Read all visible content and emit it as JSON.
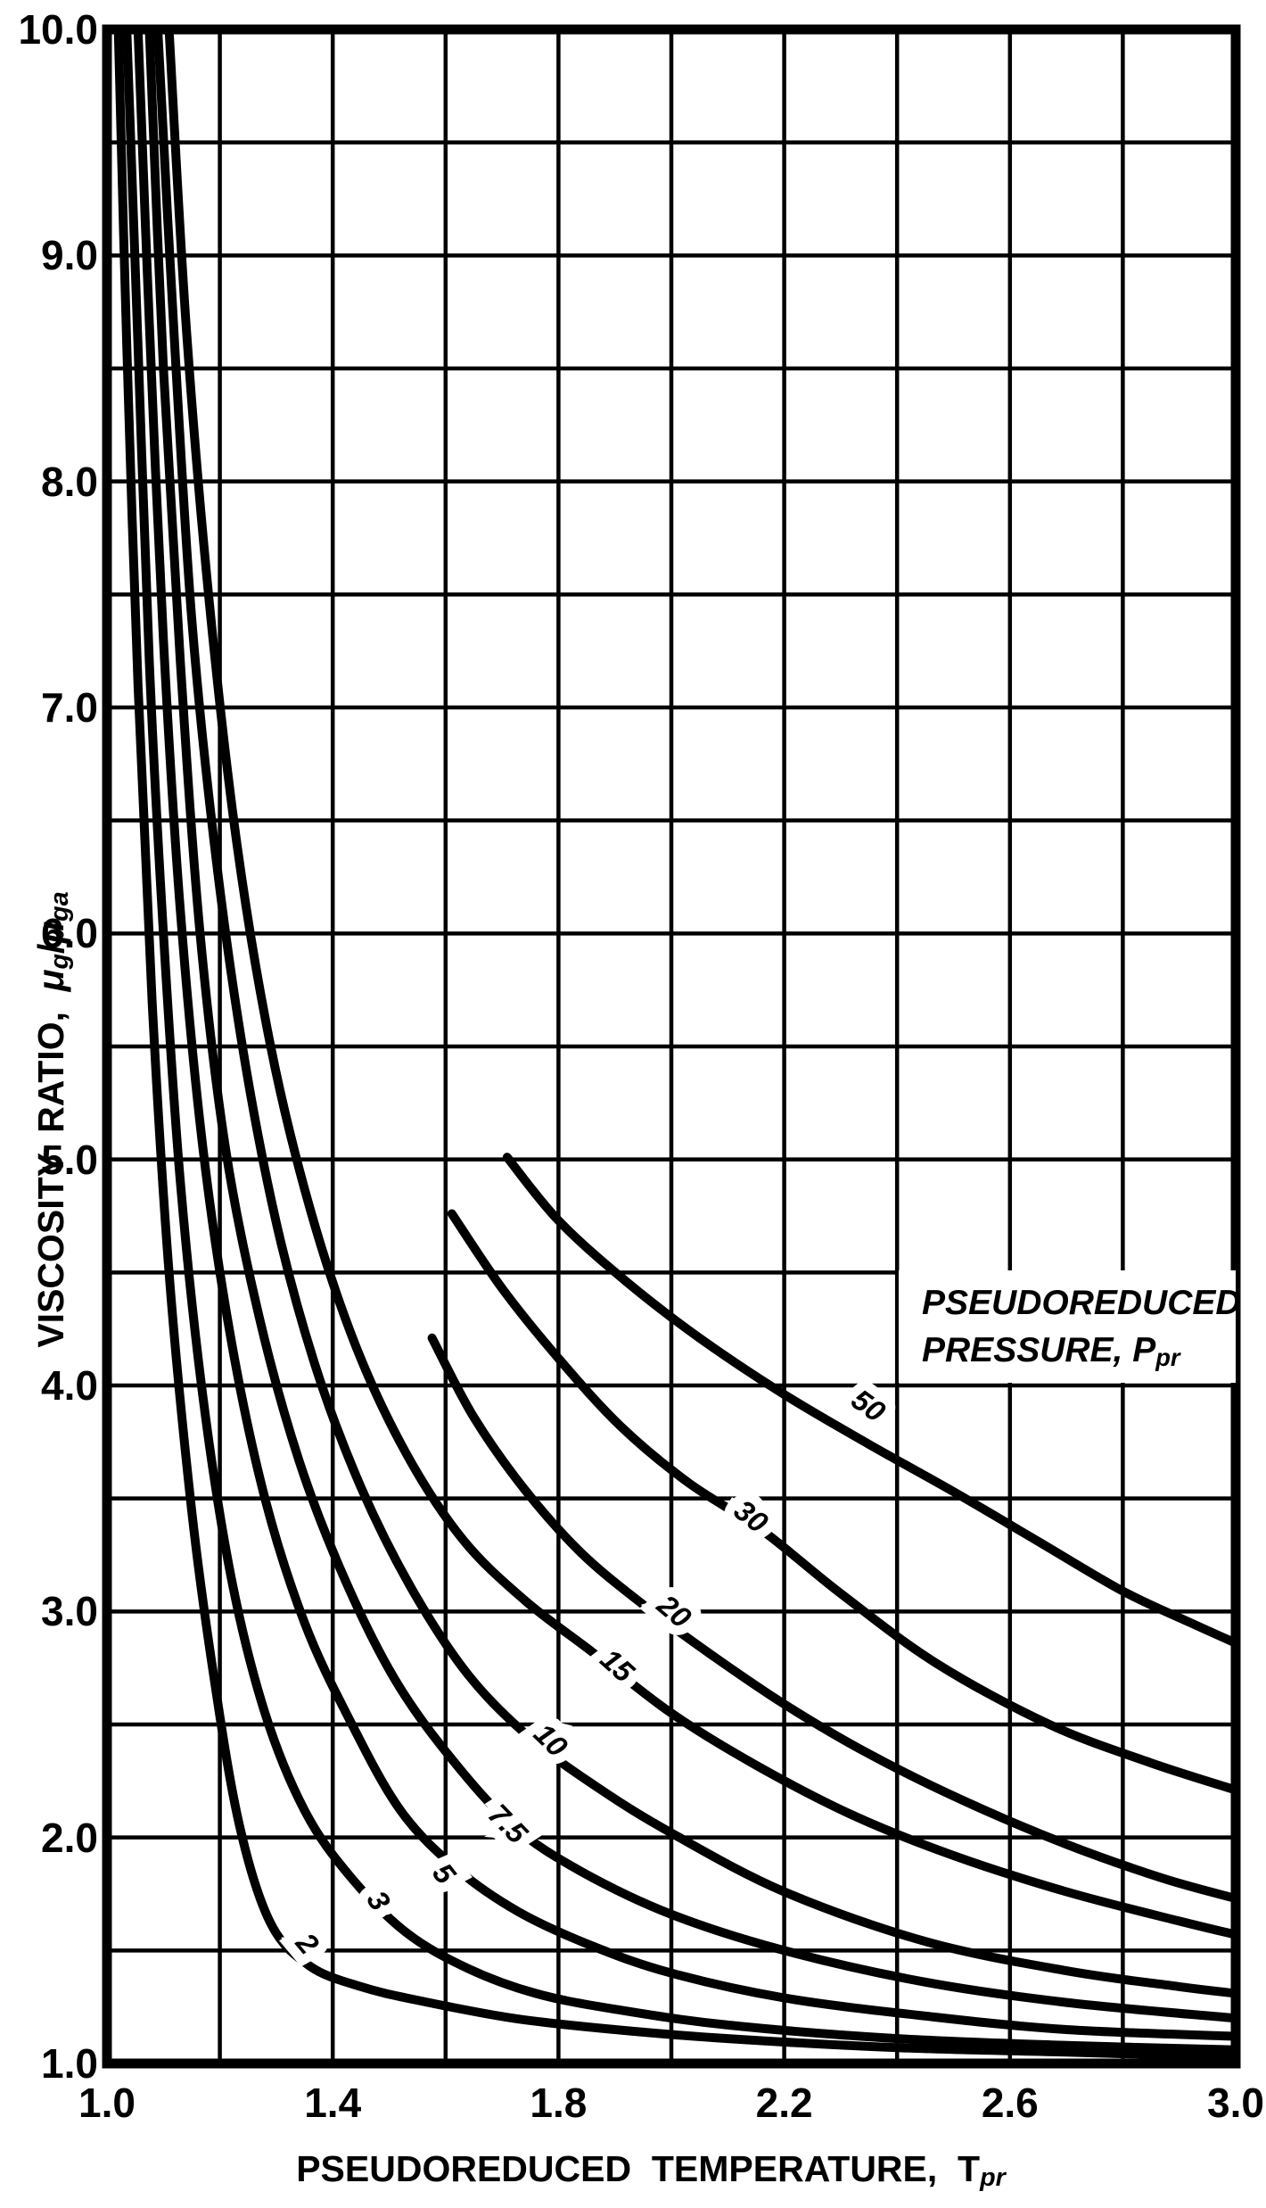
{
  "chart_data": {
    "type": "line",
    "title": "",
    "xlabel_main": "PSEUDOREDUCED  TEMPERATURE,  T",
    "xlabel_sub": "pr",
    "ylabel_prefix": "VISCOSITY  RATIO,  ",
    "ylabel_mu1": "μ",
    "ylabel_sub1": "g",
    "ylabel_slash": "/",
    "ylabel_mu2": "μ",
    "ylabel_sub2": "ga",
    "legend_line1": "PSEUDOREDUCED",
    "legend_line2": "PRESSURE, P",
    "legend_line2_sub": "pr",
    "x_axis": {
      "min": 1.0,
      "max": 3.0,
      "grid_step": 0.2,
      "ticks": [
        {
          "value": 1.0,
          "label": "1.0"
        },
        {
          "value": 1.4,
          "label": "1.4"
        },
        {
          "value": 1.8,
          "label": "1.8"
        },
        {
          "value": 2.2,
          "label": "2.2"
        },
        {
          "value": 2.6,
          "label": "2.6"
        },
        {
          "value": 3.0,
          "label": "3.0"
        }
      ]
    },
    "y_axis": {
      "min": 1.0,
      "max": 10.0,
      "grid_step": 0.5,
      "ticks": [
        {
          "value": 10.0,
          "label": "10.0"
        },
        {
          "value": 9.0,
          "label": "9.0"
        },
        {
          "value": 8.0,
          "label": "8.0"
        },
        {
          "value": 7.0,
          "label": "7.0"
        },
        {
          "value": 6.0,
          "label": "6.0"
        },
        {
          "value": 5.0,
          "label": "5.0"
        },
        {
          "value": 4.0,
          "label": "4.0"
        },
        {
          "value": 3.0,
          "label": "3.0"
        },
        {
          "value": 2.0,
          "label": "2.0"
        },
        {
          "value": 1.0,
          "label": "1.0"
        }
      ]
    },
    "series": [
      {
        "name": "Ppr-2",
        "label": "2",
        "label_pos": {
          "t": 1.355,
          "v": 1.53
        },
        "label_angle": 50,
        "points": [
          [
            1.02,
            10
          ],
          [
            1.035,
            8.6
          ],
          [
            1.055,
            7.1
          ],
          [
            1.08,
            5.7
          ],
          [
            1.11,
            4.5
          ],
          [
            1.15,
            3.45
          ],
          [
            1.19,
            2.7
          ],
          [
            1.235,
            2.05
          ],
          [
            1.29,
            1.62
          ],
          [
            1.36,
            1.43
          ],
          [
            1.45,
            1.34
          ],
          [
            1.55,
            1.28
          ],
          [
            1.72,
            1.2
          ],
          [
            1.9,
            1.15
          ],
          [
            2.1,
            1.11
          ],
          [
            2.4,
            1.07
          ],
          [
            2.7,
            1.05
          ],
          [
            3.0,
            1.03
          ]
        ]
      },
      {
        "name": "Ppr-3",
        "label": "3",
        "label_pos": {
          "t": 1.481,
          "v": 1.72
        },
        "label_angle": 58,
        "points": [
          [
            1.035,
            10
          ],
          [
            1.055,
            8.6
          ],
          [
            1.075,
            7.2
          ],
          [
            1.1,
            6.0
          ],
          [
            1.13,
            4.9
          ],
          [
            1.17,
            3.95
          ],
          [
            1.22,
            3.15
          ],
          [
            1.28,
            2.55
          ],
          [
            1.35,
            2.12
          ],
          [
            1.43,
            1.83
          ],
          [
            1.53,
            1.58
          ],
          [
            1.64,
            1.42
          ],
          [
            1.76,
            1.31
          ],
          [
            1.9,
            1.24
          ],
          [
            2.1,
            1.17
          ],
          [
            2.4,
            1.11
          ],
          [
            2.7,
            1.08
          ],
          [
            3.0,
            1.06
          ]
        ]
      },
      {
        "name": "Ppr-5",
        "label": "5",
        "label_pos": {
          "t": 1.597,
          "v": 1.84
        },
        "label_angle": 52,
        "points": [
          [
            1.055,
            10
          ],
          [
            1.075,
            8.7
          ],
          [
            1.1,
            7.3
          ],
          [
            1.13,
            6.1
          ],
          [
            1.17,
            5.05
          ],
          [
            1.22,
            4.2
          ],
          [
            1.28,
            3.5
          ],
          [
            1.35,
            2.95
          ],
          [
            1.43,
            2.52
          ],
          [
            1.52,
            2.12
          ],
          [
            1.62,
            1.86
          ],
          [
            1.73,
            1.67
          ],
          [
            1.86,
            1.52
          ],
          [
            2.0,
            1.4
          ],
          [
            2.2,
            1.29
          ],
          [
            2.45,
            1.21
          ],
          [
            2.7,
            1.15
          ],
          [
            3.0,
            1.12
          ]
        ]
      },
      {
        "name": "Ppr-7.5",
        "label": "7.5",
        "label_pos": {
          "t": 1.71,
          "v": 2.06
        },
        "label_angle": 46,
        "points": [
          [
            1.075,
            10
          ],
          [
            1.1,
            8.5
          ],
          [
            1.13,
            7.2
          ],
          [
            1.165,
            6.0
          ],
          [
            1.21,
            5.05
          ],
          [
            1.27,
            4.3
          ],
          [
            1.34,
            3.67
          ],
          [
            1.42,
            3.15
          ],
          [
            1.51,
            2.7
          ],
          [
            1.61,
            2.35
          ],
          [
            1.72,
            2.05
          ],
          [
            1.84,
            1.85
          ],
          [
            2.0,
            1.66
          ],
          [
            2.2,
            1.5
          ],
          [
            2.45,
            1.36
          ],
          [
            2.7,
            1.27
          ],
          [
            3.0,
            1.2
          ]
        ]
      },
      {
        "name": "Ppr-10",
        "label": "10",
        "label_pos": {
          "t": 1.786,
          "v": 2.43
        },
        "label_angle": 44,
        "points": [
          [
            1.09,
            10
          ],
          [
            1.12,
            8.6
          ],
          [
            1.15,
            7.4
          ],
          [
            1.19,
            6.4
          ],
          [
            1.24,
            5.5
          ],
          [
            1.3,
            4.72
          ],
          [
            1.37,
            4.08
          ],
          [
            1.45,
            3.55
          ],
          [
            1.54,
            3.1
          ],
          [
            1.64,
            2.72
          ],
          [
            1.75,
            2.44
          ],
          [
            1.87,
            2.22
          ],
          [
            2.0,
            2.02
          ],
          [
            2.2,
            1.76
          ],
          [
            2.45,
            1.54
          ],
          [
            2.7,
            1.41
          ],
          [
            2.9,
            1.34
          ],
          [
            3.0,
            1.31
          ]
        ]
      },
      {
        "name": "Ppr-15",
        "label": "15",
        "label_pos": {
          "t": 1.904,
          "v": 2.76
        },
        "label_angle": 42,
        "points": [
          [
            1.11,
            10
          ],
          [
            1.14,
            8.7
          ],
          [
            1.18,
            7.5
          ],
          [
            1.23,
            6.4
          ],
          [
            1.29,
            5.5
          ],
          [
            1.36,
            4.78
          ],
          [
            1.44,
            4.18
          ],
          [
            1.53,
            3.7
          ],
          [
            1.63,
            3.32
          ],
          [
            1.74,
            3.05
          ],
          [
            1.86,
            2.82
          ],
          [
            2.0,
            2.55
          ],
          [
            2.15,
            2.32
          ],
          [
            2.32,
            2.1
          ],
          [
            2.5,
            1.92
          ],
          [
            2.7,
            1.76
          ],
          [
            2.9,
            1.63
          ],
          [
            3.0,
            1.57
          ]
        ]
      },
      {
        "name": "Ppr-20",
        "label": "20",
        "label_pos": {
          "t": 2.005,
          "v": 3.0
        },
        "label_angle": 40,
        "points": [
          [
            1.576,
            4.21
          ],
          [
            1.65,
            3.86
          ],
          [
            1.74,
            3.54
          ],
          [
            1.84,
            3.26
          ],
          [
            1.95,
            3.03
          ],
          [
            2.07,
            2.81
          ],
          [
            2.2,
            2.59
          ],
          [
            2.35,
            2.37
          ],
          [
            2.52,
            2.16
          ],
          [
            2.7,
            1.97
          ],
          [
            2.87,
            1.82
          ],
          [
            3.0,
            1.73
          ]
        ]
      },
      {
        "name": "Ppr-30",
        "label": "30",
        "label_pos": {
          "t": 2.141,
          "v": 3.42
        },
        "label_angle": 38,
        "points": [
          [
            1.611,
            4.76
          ],
          [
            1.7,
            4.43
          ],
          [
            1.8,
            4.12
          ],
          [
            1.91,
            3.82
          ],
          [
            2.03,
            3.57
          ],
          [
            2.16,
            3.36
          ],
          [
            2.3,
            3.08
          ],
          [
            2.47,
            2.77
          ],
          [
            2.67,
            2.5
          ],
          [
            2.85,
            2.33
          ],
          [
            3.0,
            2.21
          ]
        ]
      },
      {
        "name": "Ppr-50",
        "label": "50",
        "label_pos": {
          "t": 2.349,
          "v": 3.91
        },
        "label_angle": 36,
        "points": [
          [
            1.709,
            5.01
          ],
          [
            1.8,
            4.73
          ],
          [
            1.92,
            4.46
          ],
          [
            2.05,
            4.21
          ],
          [
            2.2,
            3.96
          ],
          [
            2.35,
            3.74
          ],
          [
            2.5,
            3.53
          ],
          [
            2.65,
            3.31
          ],
          [
            2.8,
            3.09
          ],
          [
            2.92,
            2.95
          ],
          [
            3.0,
            2.86
          ]
        ]
      }
    ]
  }
}
